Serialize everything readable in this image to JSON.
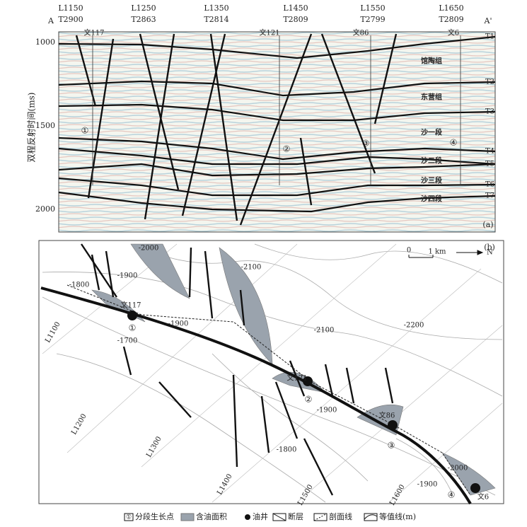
{
  "section_a": {
    "panel_label": "(a)",
    "left_end": "A",
    "right_end": "A'",
    "y_axis_title": "双程反射时间(ms)",
    "y_ticks": [
      "1000",
      "1500",
      "2000"
    ],
    "lines": [
      {
        "line": "L1150",
        "trace": "T2900"
      },
      {
        "line": "L1250",
        "trace": "T2863"
      },
      {
        "line": "L1350",
        "trace": "T2814"
      },
      {
        "line": "L1450",
        "trace": "T2809"
      },
      {
        "line": "L1550",
        "trace": "T2799"
      },
      {
        "line": "L1650",
        "trace": "T2809"
      }
    ],
    "wells": [
      "文117",
      "文121",
      "文86",
      "文6"
    ],
    "horizons": [
      "T1",
      "T2",
      "T3",
      "T4",
      "T5",
      "T6",
      "T7"
    ],
    "formations": [
      "馆陶组",
      "东营组",
      "沙一段",
      "沙二段",
      "沙三段",
      "沙四段"
    ],
    "growth_points": [
      "①",
      "②",
      "③",
      "④"
    ]
  },
  "map_b": {
    "panel_label": "(b)",
    "scale": {
      "zero": "0",
      "length": "1 km"
    },
    "north": "N",
    "contours": [
      "-2000",
      "-1900",
      "-1800",
      "-1700",
      "-1900",
      "-2100",
      "-2100",
      "-2200",
      "-1900",
      "-1800",
      "-1900",
      "-2000"
    ],
    "survey_lines": [
      "L1100",
      "L1200",
      "L1300",
      "L1400",
      "L1500",
      "L1600"
    ],
    "wells": [
      "文117",
      "文121",
      "文86",
      "文6"
    ],
    "growth_points": [
      "①",
      "②",
      "③",
      "④"
    ]
  },
  "legend": [
    "分段生长点",
    "含油面积",
    "油井",
    "断层",
    "剖面线",
    "等值线(m)"
  ]
}
